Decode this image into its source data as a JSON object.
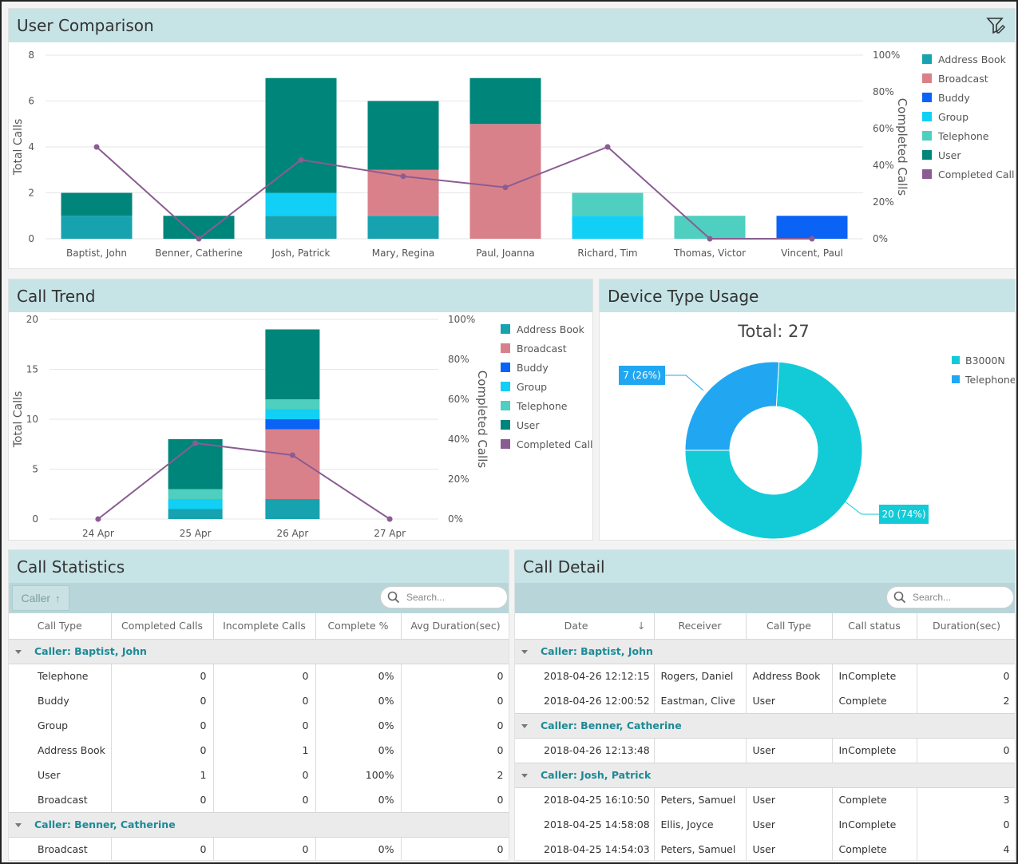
{
  "colors": {
    "address_book": "#17a2b0",
    "broadcast": "#d9818a",
    "buddy": "#0a63f5",
    "group": "#12cff5",
    "telephone": "#4ecfbf",
    "user": "#00857a",
    "completed": "#8a5d92",
    "header_bg": "#c6e3e6",
    "donut_b3000n": "#12cbd7",
    "donut_telephone": "#21a7f2"
  },
  "user_comparison": {
    "title": "User Comparison",
    "filter_icon": "filter-edit-icon",
    "ylabel": "Total Calls",
    "y2label": "Completed Calls",
    "y_ticks": [
      "0",
      "2",
      "4",
      "6",
      "8"
    ],
    "y2_ticks": [
      "0%",
      "20%",
      "40%",
      "60%",
      "80%",
      "100%"
    ],
    "legend": [
      "Address Book",
      "Broadcast",
      "Buddy",
      "Group",
      "Telephone",
      "User",
      "Completed Calls"
    ]
  },
  "call_trend": {
    "title": "Call Trend",
    "ylabel": "Total Calls",
    "y2label": "Completed Calls",
    "y_ticks": [
      "0",
      "5",
      "10",
      "15",
      "20"
    ],
    "y2_ticks": [
      "0%",
      "20%",
      "40%",
      "60%",
      "80%",
      "100%"
    ],
    "legend": [
      "Address Book",
      "Broadcast",
      "Buddy",
      "Group",
      "Telephone",
      "User",
      "Completed Calls"
    ]
  },
  "device_usage": {
    "title": "Device Type Usage",
    "total_label": "Total: 27",
    "legend": [
      "B3000N",
      "Telephone"
    ],
    "label_telephone": "7 (26%)",
    "label_b3000n": "20 (74%)"
  },
  "chart_data": [
    {
      "type": "bar",
      "stacked": true,
      "categories": [
        "Baptist, John",
        "Benner, Catherine",
        "Josh, Patrick",
        "Mary, Regina",
        "Paul, Joanna",
        "Richard, Tim",
        "Thomas, Victor",
        "Vincent, Paul"
      ],
      "series": [
        {
          "name": "Address Book",
          "values": [
            1,
            0,
            1,
            1,
            0,
            0,
            0,
            0
          ]
        },
        {
          "name": "Broadcast",
          "values": [
            0,
            0,
            0,
            2,
            5,
            0,
            0,
            0
          ]
        },
        {
          "name": "Buddy",
          "values": [
            0,
            0,
            0,
            0,
            0,
            0,
            0,
            1
          ]
        },
        {
          "name": "Group",
          "values": [
            0,
            0,
            1,
            0,
            0,
            1,
            0,
            0
          ]
        },
        {
          "name": "Telephone",
          "values": [
            0,
            0,
            0,
            0,
            0,
            1,
            1,
            0
          ]
        },
        {
          "name": "User",
          "values": [
            1,
            1,
            5,
            3,
            2,
            0,
            0,
            0
          ]
        }
      ],
      "line_series": {
        "name": "Completed Calls",
        "values": [
          50,
          0,
          43,
          34,
          28,
          50,
          0,
          0
        ],
        "axis": "y2"
      },
      "ylabel": "Total Calls",
      "y2label": "Completed Calls",
      "ylim": [
        0,
        8
      ],
      "y2lim": [
        0,
        100
      ],
      "legend_position": "right"
    },
    {
      "type": "bar",
      "stacked": true,
      "categories": [
        "24 Apr",
        "25 Apr",
        "26 Apr",
        "27 Apr"
      ],
      "series": [
        {
          "name": "Address Book",
          "values": [
            0,
            1,
            2,
            0
          ]
        },
        {
          "name": "Broadcast",
          "values": [
            0,
            0,
            7,
            0
          ]
        },
        {
          "name": "Buddy",
          "values": [
            0,
            0,
            1,
            0
          ]
        },
        {
          "name": "Group",
          "values": [
            0,
            1,
            1,
            0
          ]
        },
        {
          "name": "Telephone",
          "values": [
            0,
            1,
            1,
            0
          ]
        },
        {
          "name": "User",
          "values": [
            0,
            5,
            7,
            0
          ]
        }
      ],
      "line_series": {
        "name": "Completed Calls",
        "values": [
          0,
          38,
          32,
          0
        ],
        "axis": "y2"
      },
      "ylabel": "Total Calls",
      "y2label": "Completed Calls",
      "ylim": [
        0,
        20
      ],
      "y2lim": [
        0,
        100
      ],
      "legend_position": "right"
    },
    {
      "type": "pie",
      "donut": true,
      "title": "Total: 27",
      "labels": [
        "B3000N",
        "Telephone"
      ],
      "values": [
        20,
        7
      ],
      "legend_position": "right"
    }
  ],
  "call_statistics": {
    "title": "Call Statistics",
    "caller_chip": "Caller",
    "search_placeholder": "Search...",
    "columns": [
      "Call Type",
      "Completed Calls",
      "Incomplete Calls",
      "Complete %",
      "Avg Duration(sec)"
    ],
    "groups": [
      {
        "label": "Caller: Baptist, John",
        "rows": [
          [
            "Telephone",
            "0",
            "0",
            "0%",
            "0"
          ],
          [
            "Buddy",
            "0",
            "0",
            "0%",
            "0"
          ],
          [
            "Group",
            "0",
            "0",
            "0%",
            "0"
          ],
          [
            "Address Book",
            "0",
            "1",
            "0%",
            "0"
          ],
          [
            "User",
            "1",
            "0",
            "100%",
            "2"
          ],
          [
            "Broadcast",
            "0",
            "0",
            "0%",
            "0"
          ]
        ]
      },
      {
        "label": "Caller: Benner, Catherine",
        "rows": [
          [
            "Broadcast",
            "0",
            "0",
            "0%",
            "0"
          ]
        ]
      }
    ]
  },
  "call_detail": {
    "title": "Call Detail",
    "search_placeholder": "Search...",
    "columns": [
      "Date",
      "Receiver",
      "Call Type",
      "Call status",
      "Duration(sec)"
    ],
    "groups": [
      {
        "label": "Caller: Baptist, John",
        "rows": [
          [
            "2018-04-26 12:12:15",
            "Rogers, Daniel",
            "Address Book",
            "InComplete",
            "0"
          ],
          [
            "2018-04-26 12:00:52",
            "Eastman, Clive",
            "User",
            "Complete",
            "2"
          ]
        ]
      },
      {
        "label": "Caller: Benner, Catherine",
        "rows": [
          [
            "2018-04-26 12:13:48",
            "",
            "User",
            "InComplete",
            "0"
          ]
        ]
      },
      {
        "label": "Caller: Josh, Patrick",
        "rows": [
          [
            "2018-04-25 16:10:50",
            "Peters, Samuel",
            "User",
            "Complete",
            "3"
          ],
          [
            "2018-04-25 14:58:08",
            "Ellis, Joyce",
            "User",
            "InComplete",
            "0"
          ],
          [
            "2018-04-25 14:54:03",
            "Peters, Samuel",
            "User",
            "Complete",
            "4"
          ]
        ]
      }
    ]
  }
}
